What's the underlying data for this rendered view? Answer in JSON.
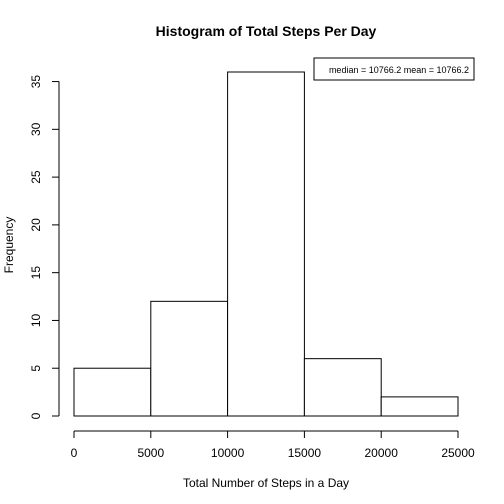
{
  "chart_data": {
    "type": "bar",
    "title": "Histogram of Total Steps Per Day",
    "xlabel": "Total Number of Steps in a Day",
    "ylabel": "Frequency",
    "bins": [
      {
        "start": 0,
        "end": 5000,
        "count": 5
      },
      {
        "start": 5000,
        "end": 10000,
        "count": 12
      },
      {
        "start": 10000,
        "end": 15000,
        "count": 36
      },
      {
        "start": 15000,
        "end": 20000,
        "count": 6
      },
      {
        "start": 20000,
        "end": 25000,
        "count": 2
      }
    ],
    "xlim": [
      0,
      25000
    ],
    "ylim": [
      0,
      36
    ],
    "xticks": [
      0,
      5000,
      10000,
      15000,
      20000,
      25000
    ],
    "yticks": [
      0,
      5,
      10,
      15,
      20,
      25,
      30,
      35
    ],
    "legend": {
      "text": "median = 10766.2 mean = 10766.2",
      "placement": "top-right"
    },
    "grid": false
  }
}
